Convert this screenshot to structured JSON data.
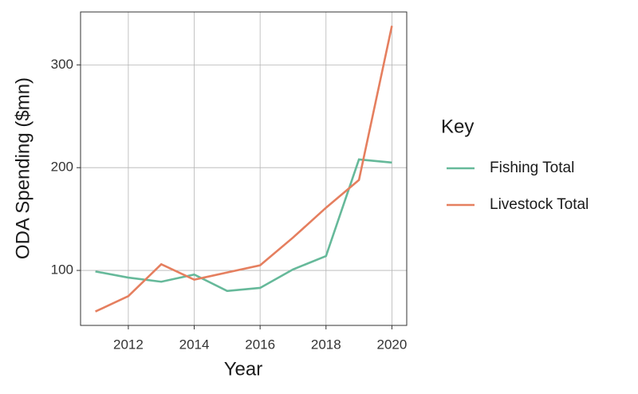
{
  "chart_data": {
    "type": "line",
    "x_label": "Year",
    "y_label": "ODA Spending ($mn)",
    "x": [
      2011,
      2012,
      2013,
      2014,
      2015,
      2016,
      2017,
      2018,
      2019,
      2020
    ],
    "series": [
      {
        "name": "Fishing Total",
        "color": "#66b99a",
        "values": [
          99,
          93,
          89,
          96,
          80,
          83,
          101,
          114,
          208,
          205
        ]
      },
      {
        "name": "Livestock Total",
        "color": "#e57f5f",
        "values": [
          60,
          75,
          106,
          91,
          98,
          105,
          132,
          161,
          188,
          338
        ]
      }
    ],
    "xlim": [
      2010.55,
      2020.45
    ],
    "xticks": [
      2012,
      2014,
      2016,
      2018,
      2020
    ],
    "ylim": [
      46.5,
      351.5
    ],
    "yticks": [
      100,
      200,
      300
    ],
    "grid": true,
    "legend_title": "Key",
    "legend_position": "right"
  }
}
